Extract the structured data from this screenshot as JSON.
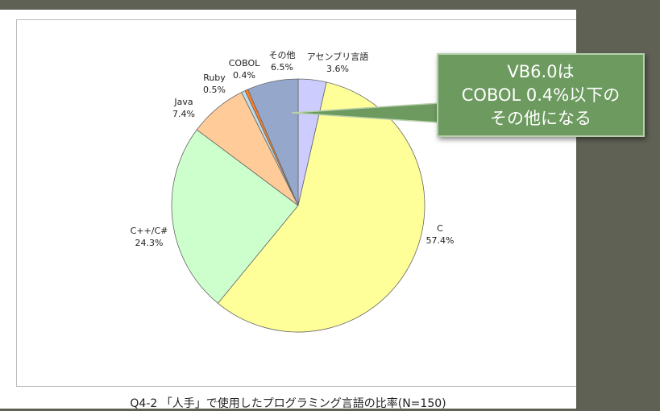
{
  "caption": "Q4-2 「人手」で使用したプログラミング言語の比率(N=150)",
  "callout": {
    "line1": "VB6.0は",
    "line2": "COBOL 0.4%以下の",
    "line3": "その他になる",
    "fill": "#6c9a5f",
    "border": "#b9d0ac"
  },
  "chart_data": {
    "type": "pie",
    "title": "",
    "n": 150,
    "slices": [
      {
        "name": "アセンブリ言語",
        "value": 3.6,
        "label": "3.6%",
        "color": "#ccccff"
      },
      {
        "name": "C",
        "value": 57.4,
        "label": "57.4%",
        "color": "#ffff99"
      },
      {
        "name": "C++/C#",
        "value": 24.3,
        "label": "24.3%",
        "color": "#ccffcc"
      },
      {
        "name": "Java",
        "value": 7.4,
        "label": "7.4%",
        "color": "#ffcc99"
      },
      {
        "name": "Ruby",
        "value": 0.5,
        "label": "0.5%",
        "color": "#c0dce8"
      },
      {
        "name": "COBOL",
        "value": 0.4,
        "label": "0.4%",
        "color": "#ff7c1c"
      },
      {
        "name": "その他",
        "value": 6.5,
        "label": "6.5%",
        "color": "#95a8cc"
      }
    ]
  }
}
